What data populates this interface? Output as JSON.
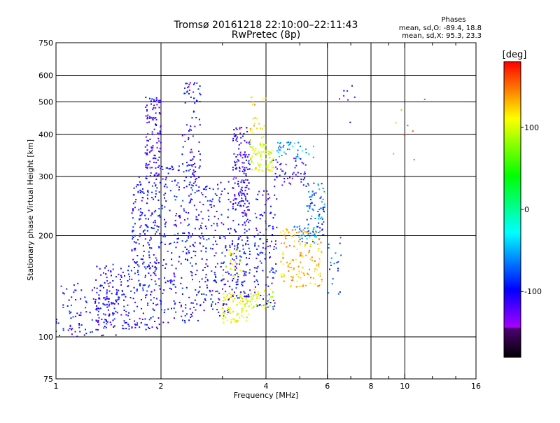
{
  "chart_data": {
    "type": "scatter",
    "title": "Tromsø 20161218 22:10:00–22:11:43",
    "subtitle": "RwPretec (8p)",
    "xlabel": "Frequency [MHz]",
    "ylabel": "Stationary phase Virtual Height [km]",
    "xscale": "log",
    "yscale": "log",
    "xlim": [
      1,
      16
    ],
    "ylim": [
      75,
      750
    ],
    "x_ticks": [
      1,
      2,
      4,
      6,
      8,
      10,
      16
    ],
    "x_tick_labels": [
      "1",
      "2",
      "4",
      "6",
      "8",
      "10",
      "16"
    ],
    "x_minor_ticks": [
      3,
      5,
      7,
      9,
      12,
      14
    ],
    "y_ticks": [
      75,
      100,
      200,
      300,
      400,
      500,
      600,
      750
    ],
    "y_tick_labels": [
      "75",
      "100",
      "200",
      "300",
      "400",
      "500",
      "600",
      "750"
    ],
    "x_grid": [
      2,
      4,
      6,
      8,
      10
    ],
    "y_grid": [
      100,
      200,
      300,
      400,
      500,
      600
    ],
    "grid": true,
    "legend": {
      "title": "Phases",
      "lines": [
        "mean, sd,O: -89.4, 18.8",
        "mean, sd,X:  95.3, 23.3"
      ],
      "placement": "top-right"
    },
    "colorbar": {
      "label": "[deg]",
      "range": [
        -180,
        180
      ],
      "ticks": [
        100,
        0,
        -100
      ],
      "tick_labels": [
        "100",
        "0",
        "-100"
      ]
    },
    "clusters": [
      {
        "x": [
          1.0,
          1.5
        ],
        "y": [
          100,
          145
        ],
        "phase": -100,
        "n": 120
      },
      {
        "x": [
          1.3,
          1.65
        ],
        "y": [
          105,
          165
        ],
        "phase": -105,
        "n": 120
      },
      {
        "x": [
          1.65,
          2.0
        ],
        "y": [
          105,
          300
        ],
        "phase": -100,
        "n": 260
      },
      {
        "x": [
          1.8,
          2.0
        ],
        "y": [
          300,
          520
        ],
        "phase": -110,
        "n": 120
      },
      {
        "x": [
          2.0,
          2.6
        ],
        "y": [
          110,
          330
        ],
        "phase": -100,
        "n": 260
      },
      {
        "x": [
          2.3,
          2.6
        ],
        "y": [
          300,
          580
        ],
        "phase": -105,
        "n": 70
      },
      {
        "x": [
          2.6,
          3.2
        ],
        "y": [
          115,
          290
        ],
        "phase": -100,
        "n": 180
      },
      {
        "x": [
          3.2,
          3.6
        ],
        "y": [
          230,
          420
        ],
        "phase": -110,
        "n": 160
      },
      {
        "x": [
          3.2,
          3.6
        ],
        "y": [
          130,
          230
        ],
        "phase": -100,
        "n": 110
      },
      {
        "x": [
          3.0,
          3.6
        ],
        "y": [
          110,
          135
        ],
        "phase": 110,
        "n": 90
      },
      {
        "x": [
          3.0,
          3.4
        ],
        "y": [
          150,
          185
        ],
        "phase": 100,
        "n": 20
      },
      {
        "x": [
          3.6,
          4.2
        ],
        "y": [
          310,
          380
        ],
        "phase": 100,
        "n": 80
      },
      {
        "x": [
          3.6,
          4.0
        ],
        "y": [
          380,
          520
        ],
        "phase": 120,
        "n": 25
      },
      {
        "x": [
          3.7,
          4.3
        ],
        "y": [
          120,
          280
        ],
        "phase": -100,
        "n": 120
      },
      {
        "x": [
          3.6,
          4.2
        ],
        "y": [
          120,
          140
        ],
        "phase": 100,
        "n": 40
      },
      {
        "x": [
          4.2,
          5.2
        ],
        "y": [
          280,
          340
        ],
        "phase": -110,
        "n": 50
      },
      {
        "x": [
          4.3,
          5.5
        ],
        "y": [
          340,
          380
        ],
        "phase": -50,
        "n": 40
      },
      {
        "x": [
          4.4,
          5.8
        ],
        "y": [
          140,
          210
        ],
        "phase": 130,
        "n": 150
      },
      {
        "x": [
          5.2,
          5.9
        ],
        "y": [
          200,
          290
        ],
        "phase": -70,
        "n": 80
      },
      {
        "x": [
          4.8,
          5.6
        ],
        "y": [
          190,
          215
        ],
        "phase": -60,
        "n": 30
      },
      {
        "x": [
          6.0,
          6.6
        ],
        "y": [
          130,
          200
        ],
        "phase": -80,
        "n": 20
      },
      {
        "x": [
          6.4,
          7.2
        ],
        "y": [
          420,
          560
        ],
        "phase": -110,
        "n": 8
      },
      {
        "x": [
          9.0,
          12.0
        ],
        "y": [
          300,
          560
        ],
        "phase": 150,
        "n": 8
      }
    ]
  }
}
